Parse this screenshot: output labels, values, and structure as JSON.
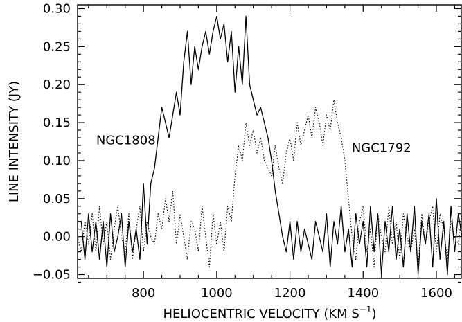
{
  "chart_data": {
    "type": "line",
    "xlabel": "HELIOCENTRIC VELOCITY (KM S",
    "xlabel_superscript": "−1",
    "xlabel_suffix": ")",
    "ylabel": "LINE INTENSITY (JY)",
    "xlim": [
      620,
      1670
    ],
    "ylim": [
      -0.055,
      0.305
    ],
    "x_ticks": [
      800,
      1000,
      1200,
      1400,
      1600
    ],
    "x_tick_labels": [
      "800",
      "1000",
      "1200",
      "1400",
      "1600"
    ],
    "y_ticks": [
      -0.05,
      0.0,
      0.05,
      0.1,
      0.15,
      0.2,
      0.25,
      0.3
    ],
    "y_tick_labels": [
      "−0.05",
      "0.00",
      "0.05",
      "0.10",
      "0.15",
      "0.20",
      "0.25",
      "0.30"
    ],
    "grid": false,
    "series": [
      {
        "name": "NGC1808",
        "style": "solid",
        "color": "#000000",
        "x": [
          620,
          630,
          640,
          650,
          660,
          670,
          680,
          690,
          700,
          710,
          720,
          730,
          740,
          750,
          760,
          770,
          780,
          790,
          800,
          810,
          820,
          830,
          840,
          850,
          860,
          870,
          880,
          890,
          900,
          910,
          920,
          930,
          940,
          950,
          960,
          970,
          980,
          990,
          1000,
          1010,
          1020,
          1030,
          1040,
          1050,
          1060,
          1070,
          1080,
          1090,
          1100,
          1110,
          1120,
          1130,
          1140,
          1150,
          1160,
          1170,
          1180,
          1190,
          1200,
          1210,
          1220,
          1230,
          1240,
          1250,
          1260,
          1270,
          1280,
          1290,
          1300,
          1310,
          1320,
          1330,
          1340,
          1350,
          1360,
          1370,
          1380,
          1390,
          1400,
          1410,
          1420,
          1430,
          1440,
          1450,
          1460,
          1470,
          1480,
          1490,
          1500,
          1510,
          1520,
          1530,
          1540,
          1550,
          1560,
          1570,
          1580,
          1590,
          1600,
          1610,
          1620,
          1630,
          1640,
          1650,
          1660,
          1670
        ],
        "y": [
          0.02,
          0.02,
          -0.03,
          0.03,
          -0.02,
          0.02,
          -0.03,
          0.02,
          -0.04,
          0.03,
          -0.02,
          0.0,
          0.03,
          -0.04,
          0.02,
          -0.02,
          0.01,
          -0.03,
          0.07,
          -0.01,
          0.07,
          0.09,
          0.13,
          0.17,
          0.15,
          0.13,
          0.16,
          0.19,
          0.16,
          0.23,
          0.27,
          0.2,
          0.25,
          0.22,
          0.25,
          0.27,
          0.24,
          0.27,
          0.29,
          0.26,
          0.28,
          0.23,
          0.27,
          0.19,
          0.25,
          0.2,
          0.29,
          0.2,
          0.18,
          0.16,
          0.17,
          0.15,
          0.13,
          0.1,
          0.06,
          0.03,
          0.0,
          -0.02,
          0.02,
          -0.03,
          0.02,
          -0.02,
          0.01,
          -0.01,
          -0.03,
          0.02,
          0.0,
          -0.02,
          0.03,
          -0.04,
          0.02,
          -0.01,
          0.04,
          -0.02,
          0.01,
          -0.04,
          0.03,
          -0.01,
          0.02,
          -0.04,
          0.04,
          -0.02,
          0.03,
          -0.05,
          0.02,
          -0.02,
          0.04,
          -0.03,
          0.01,
          -0.04,
          0.03,
          -0.02,
          0.04,
          -0.05,
          0.02,
          -0.01,
          0.03,
          -0.04,
          0.05,
          -0.03,
          0.02,
          -0.05,
          0.04,
          -0.02,
          0.03,
          0.0
        ]
      },
      {
        "name": "NGC1792",
        "style": "dotted",
        "color": "#000000",
        "x": [
          620,
          630,
          640,
          650,
          660,
          670,
          680,
          690,
          700,
          710,
          720,
          730,
          740,
          750,
          760,
          770,
          780,
          790,
          800,
          810,
          820,
          830,
          840,
          850,
          860,
          870,
          880,
          890,
          900,
          910,
          920,
          930,
          940,
          950,
          960,
          970,
          980,
          990,
          1000,
          1010,
          1020,
          1030,
          1040,
          1050,
          1060,
          1070,
          1080,
          1090,
          1100,
          1110,
          1120,
          1130,
          1140,
          1150,
          1160,
          1170,
          1180,
          1190,
          1200,
          1210,
          1220,
          1230,
          1240,
          1250,
          1260,
          1270,
          1280,
          1290,
          1300,
          1310,
          1320,
          1330,
          1340,
          1350,
          1360,
          1370,
          1380,
          1390,
          1400,
          1410,
          1420,
          1430,
          1440,
          1450,
          1460,
          1470,
          1480,
          1490,
          1500,
          1510,
          1520,
          1530,
          1540,
          1550,
          1560,
          1570,
          1580,
          1590,
          1600,
          1610,
          1620,
          1630,
          1640,
          1650,
          1660,
          1670
        ],
        "y": [
          0.0,
          -0.02,
          0.02,
          -0.01,
          0.03,
          -0.02,
          0.04,
          -0.01,
          0.02,
          -0.03,
          0.01,
          0.04,
          0.0,
          -0.02,
          0.03,
          -0.03,
          0.01,
          0.04,
          -0.02,
          0.02,
          0.0,
          -0.01,
          0.03,
          0.01,
          0.05,
          0.02,
          0.06,
          -0.01,
          0.03,
          0.0,
          -0.03,
          0.02,
          0.01,
          -0.02,
          0.04,
          0.0,
          -0.04,
          0.03,
          -0.01,
          0.02,
          -0.02,
          0.04,
          0.02,
          0.08,
          0.12,
          0.1,
          0.15,
          0.12,
          0.14,
          0.11,
          0.13,
          0.1,
          0.09,
          0.08,
          0.12,
          0.09,
          0.07,
          0.11,
          0.13,
          0.1,
          0.15,
          0.12,
          0.14,
          0.16,
          0.13,
          0.17,
          0.15,
          0.12,
          0.16,
          0.14,
          0.18,
          0.15,
          0.13,
          0.1,
          0.05,
          0.0,
          -0.03,
          0.02,
          0.04,
          -0.02,
          0.01,
          -0.04,
          0.03,
          0.0,
          -0.02,
          0.04,
          -0.01,
          0.02,
          -0.03,
          0.03,
          0.0,
          -0.02,
          0.01,
          -0.04,
          0.03,
          -0.01,
          0.02,
          0.04,
          -0.02,
          0.03,
          0.01,
          -0.03,
          0.02,
          0.0,
          -0.01,
          0.03
        ]
      }
    ],
    "annotations": [
      {
        "text": "NGC1808",
        "x": 752,
        "y": 0.127
      },
      {
        "text": "NGC1792",
        "x": 1450,
        "y": 0.117
      }
    ]
  }
}
